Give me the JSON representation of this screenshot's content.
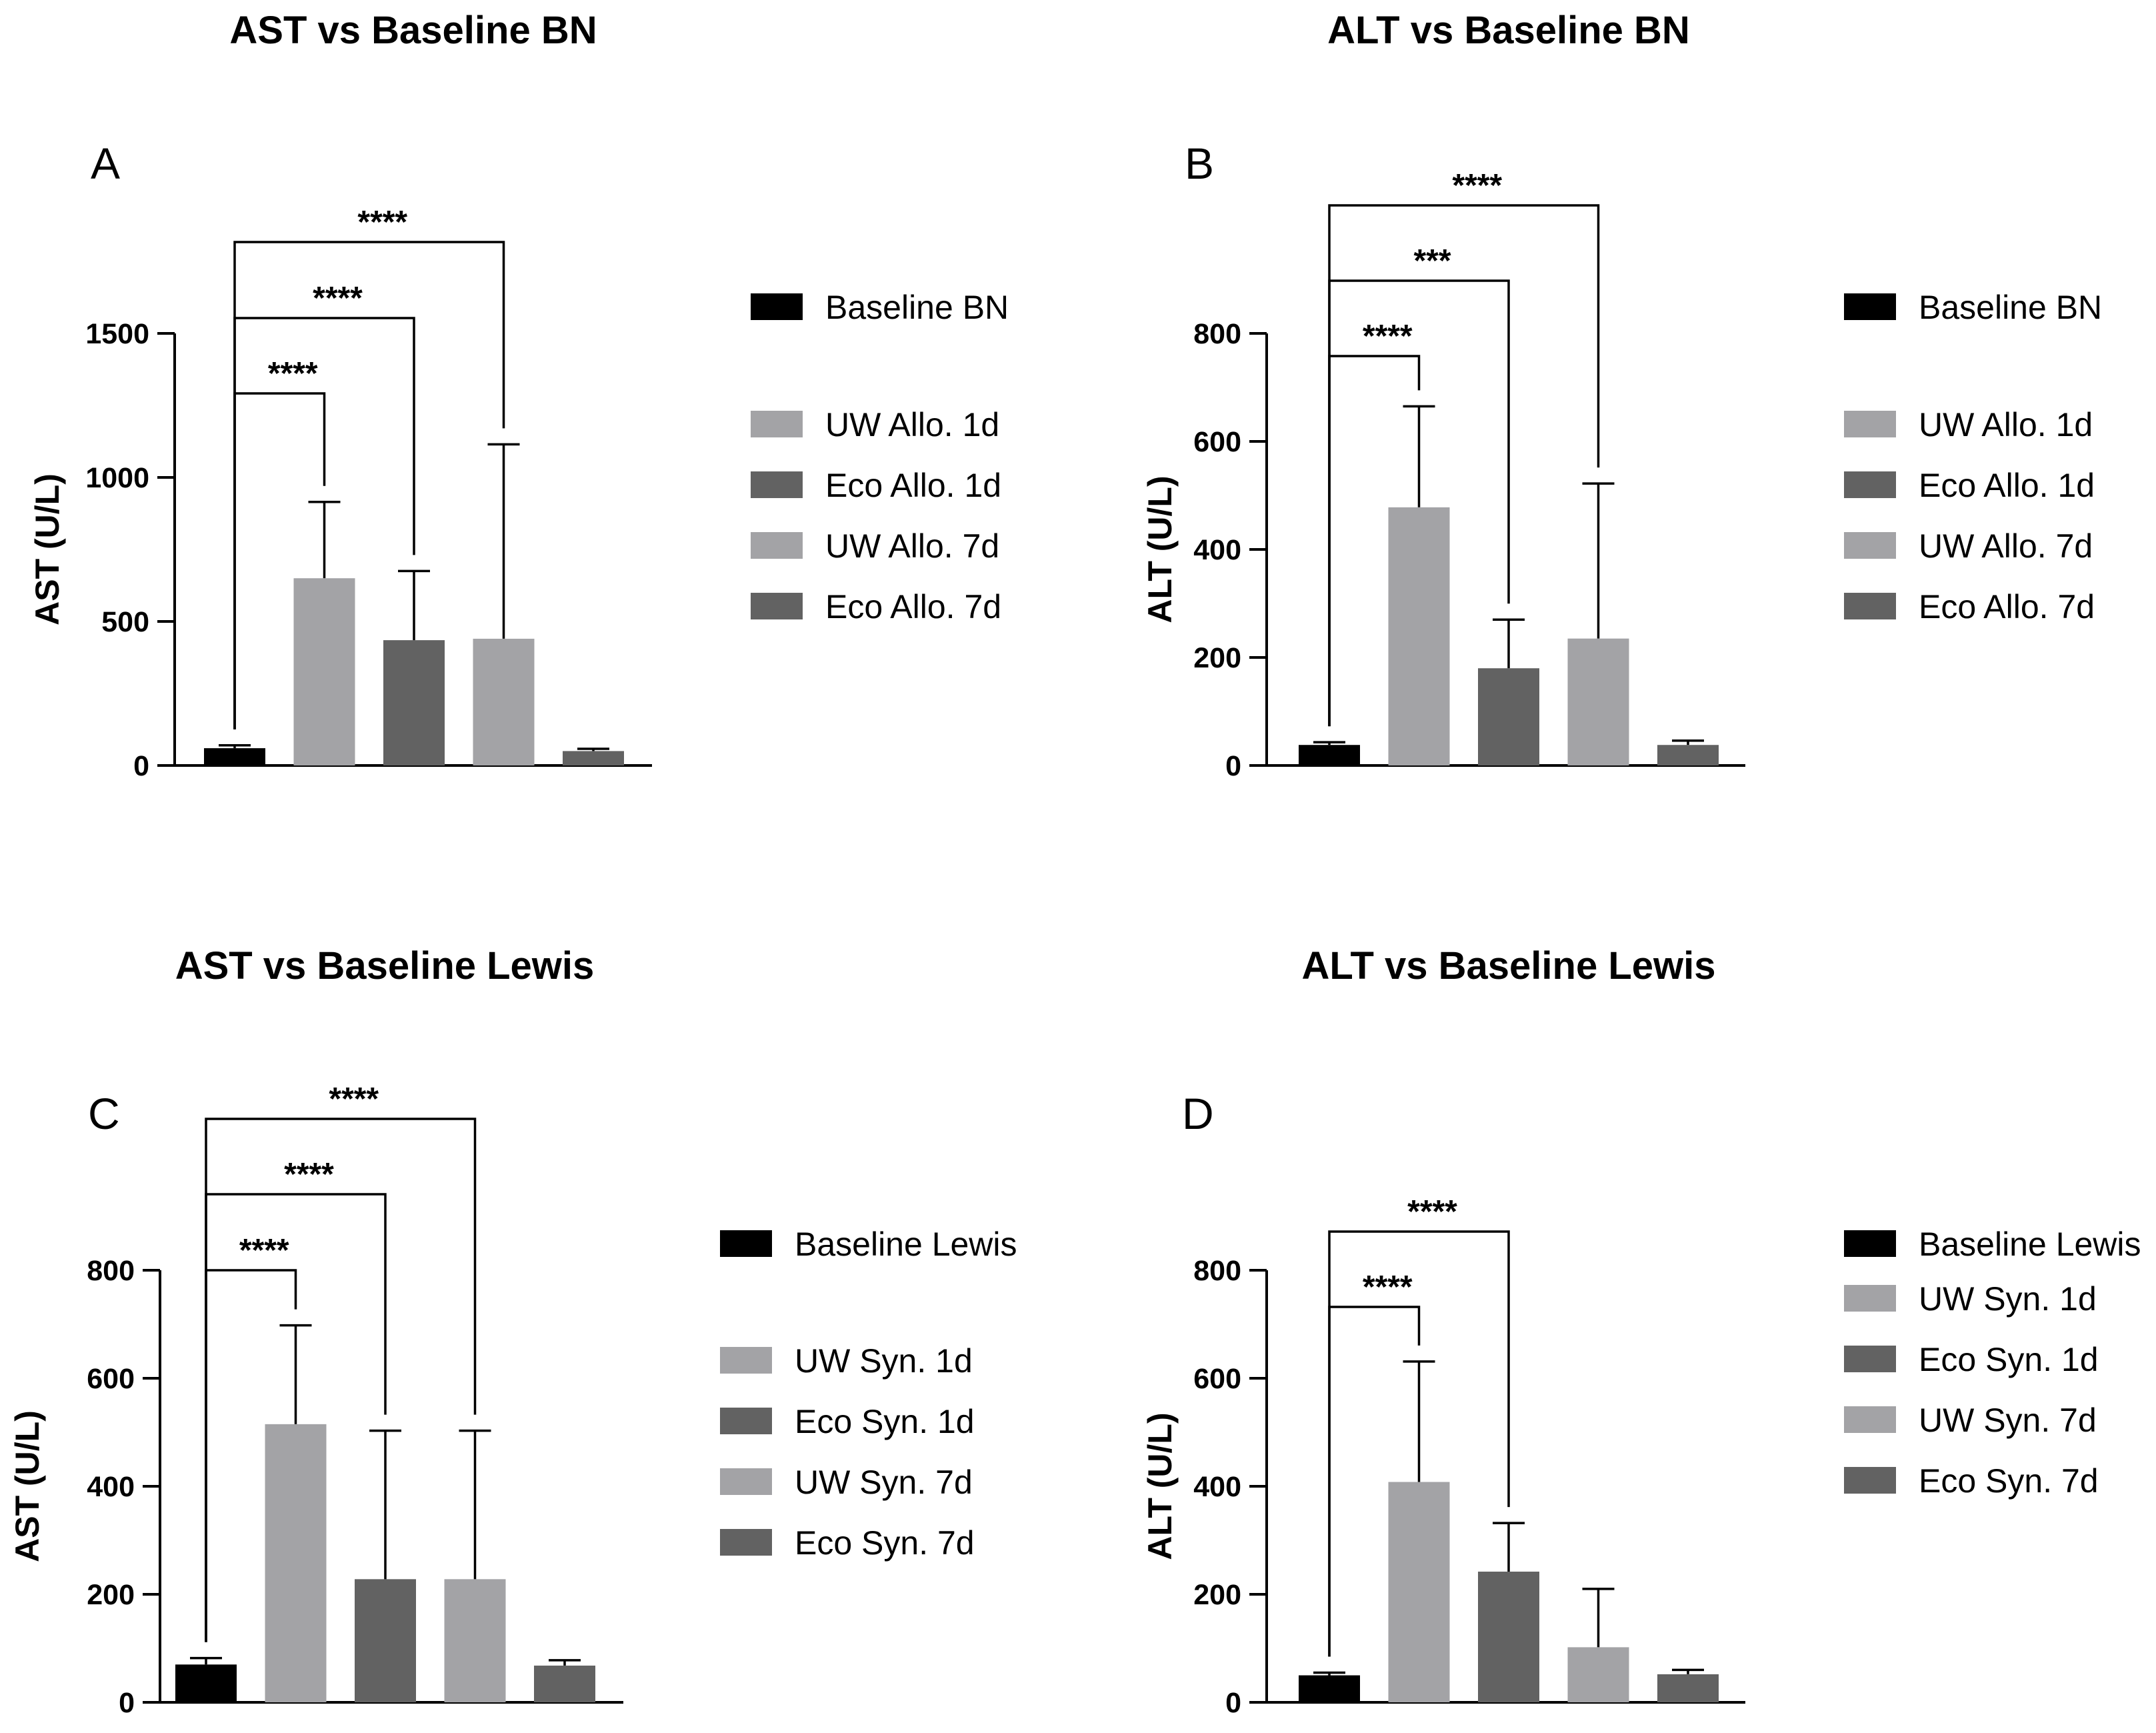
{
  "colors": {
    "baseline": "#000000",
    "uw": "#a3a3a6",
    "eco": "#626262",
    "axis": "#000000"
  },
  "chart_data": [
    {
      "type": "bar",
      "panel": "A",
      "title": "AST vs Baseline BN",
      "ylabel": "AST (U/L)",
      "ylim": [
        0,
        1500
      ],
      "yticks": [
        0,
        500,
        1000,
        1500
      ],
      "categories": [
        "Baseline BN",
        "UW Allo. 1d",
        "Eco Allo. 1d",
        "UW Allo. 7d",
        "Eco Allo. 7d"
      ],
      "values": [
        60,
        650,
        435,
        440,
        50
      ],
      "errors": [
        10,
        265,
        240,
        675,
        8
      ],
      "legend": [
        "Baseline BN",
        "UW Allo. 1d",
        "Eco Allo. 1d",
        "UW Allo. 7d",
        "Eco Allo. 7d"
      ],
      "significance": [
        {
          "from": 0,
          "to": 1,
          "label": "****"
        },
        {
          "from": 0,
          "to": 2,
          "label": "****"
        },
        {
          "from": 0,
          "to": 3,
          "label": "****"
        }
      ]
    },
    {
      "type": "bar",
      "panel": "B",
      "title": "ALT vs Baseline BN",
      "ylabel": "ALT (U/L)",
      "ylim": [
        0,
        800
      ],
      "yticks": [
        0,
        200,
        400,
        600,
        800
      ],
      "categories": [
        "Baseline BN",
        "UW Allo. 1d",
        "Eco Allo. 1d",
        "UW Allo. 7d",
        "Eco Allo. 7d"
      ],
      "values": [
        38,
        478,
        180,
        235,
        38
      ],
      "errors": [
        5,
        187,
        90,
        287,
        8
      ],
      "legend": [
        "Baseline BN",
        "UW Allo. 1d",
        "Eco Allo. 1d",
        "UW Allo. 7d",
        "Eco Allo. 7d"
      ],
      "significance": [
        {
          "from": 0,
          "to": 1,
          "label": "****"
        },
        {
          "from": 0,
          "to": 2,
          "label": "***"
        },
        {
          "from": 0,
          "to": 3,
          "label": "****"
        }
      ]
    },
    {
      "type": "bar",
      "panel": "C",
      "title": "AST vs Baseline Lewis",
      "ylabel": "AST (U/L)",
      "ylim": [
        0,
        800
      ],
      "yticks": [
        0,
        200,
        400,
        600,
        800
      ],
      "categories": [
        "Baseline Lewis",
        "UW Syn. 1d",
        "Eco Syn. 1d",
        "UW Syn. 7d",
        "Eco Syn. 7d"
      ],
      "values": [
        70,
        515,
        228,
        228,
        68
      ],
      "errors": [
        12,
        183,
        275,
        275,
        10
      ],
      "legend": [
        "Baseline Lewis",
        "UW Syn. 1d",
        "Eco Syn. 1d",
        "UW Syn. 7d",
        "Eco Syn. 7d"
      ],
      "significance": [
        {
          "from": 0,
          "to": 1,
          "label": "****"
        },
        {
          "from": 0,
          "to": 2,
          "label": "****"
        },
        {
          "from": 0,
          "to": 3,
          "label": "****"
        }
      ]
    },
    {
      "type": "bar",
      "panel": "D",
      "title": "ALT vs Baseline Lewis",
      "ylabel": "ALT (U/L)",
      "ylim": [
        0,
        800
      ],
      "yticks": [
        0,
        200,
        400,
        600,
        800
      ],
      "categories": [
        "Baseline Lewis",
        "UW Syn. 1d",
        "Eco Syn. 1d",
        "UW Syn. 7d",
        "Eco Syn. 7d"
      ],
      "values": [
        50,
        408,
        242,
        102,
        52
      ],
      "errors": [
        5,
        223,
        90,
        108,
        8
      ],
      "legend": [
        "Baseline Lewis",
        "UW Syn. 1d",
        "Eco Syn. 1d",
        "UW Syn. 7d",
        "Eco Syn. 7d"
      ],
      "significance": [
        {
          "from": 0,
          "to": 1,
          "label": "****"
        },
        {
          "from": 0,
          "to": 2,
          "label": "****"
        }
      ]
    }
  ]
}
